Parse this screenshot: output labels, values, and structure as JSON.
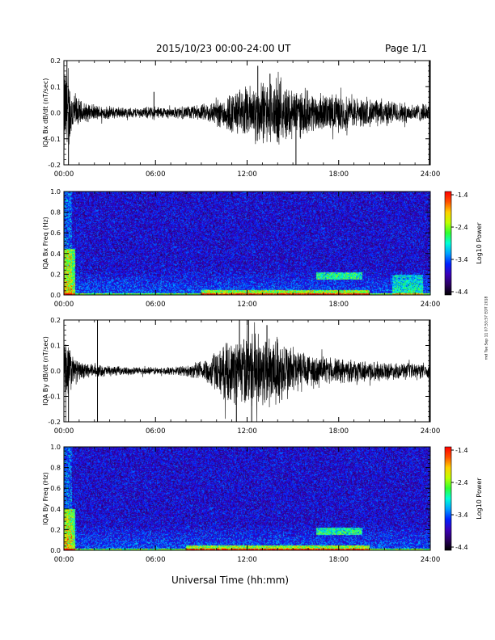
{
  "header": {
    "title": "2015/10/23  00:00-24:00 UT",
    "page": "Page 1/1"
  },
  "footer": {
    "xlabel": "Universal Time (hh:mm)",
    "side_stamp": "rnd Tue Sep 11 07:53:57 EDT 2018"
  },
  "x_ticks": [
    "00:00",
    "06:00",
    "12:00",
    "18:00",
    "24:00"
  ],
  "colorbar": {
    "label": "Log10 Power",
    "ticks": [
      "-1.4",
      "-2.4",
      "-3.4",
      "-4.4"
    ],
    "range": [
      -4.4,
      -1.4
    ]
  },
  "colors": {
    "colormap": [
      "#000000",
      "#2a0060",
      "#3a00b8",
      "#0020ff",
      "#00a0ff",
      "#00ffd8",
      "#30ff30",
      "#c0ff00",
      "#ffd000",
      "#ff5000",
      "#ff0000"
    ],
    "spectrogram_floor": "#1a2cd6"
  },
  "chart_data": [
    {
      "type": "line",
      "panel": "bx-timeseries",
      "ylabel": "IQA Bx dB/dt (nT/sec)",
      "xlim": [
        0,
        24
      ],
      "ylim": [
        -0.2,
        0.2
      ],
      "yticks": [
        "0.2",
        "0.1",
        "0.0",
        "-0.1",
        "-0.2"
      ],
      "x_hours": [
        0,
        0.5,
        1,
        1.5,
        2,
        3,
        4,
        5,
        6,
        7,
        8,
        9,
        10,
        11,
        12,
        13,
        14,
        15,
        16,
        17,
        18,
        19,
        20,
        21,
        22,
        23,
        24
      ],
      "envelope": [
        0.2,
        0.1,
        0.05,
        0.035,
        0.03,
        0.025,
        0.02,
        0.02,
        0.025,
        0.02,
        0.025,
        0.03,
        0.05,
        0.08,
        0.1,
        0.12,
        0.12,
        0.1,
        0.08,
        0.07,
        0.07,
        0.06,
        0.05,
        0.05,
        0.04,
        0.035,
        0.03
      ],
      "spikes": [
        [
          0.2,
          0.2
        ],
        [
          0.3,
          -0.2
        ],
        [
          5.9,
          0.08
        ],
        [
          12.7,
          0.18
        ],
        [
          15.2,
          -0.2
        ],
        [
          13.5,
          0.15
        ]
      ]
    },
    {
      "type": "heatmap",
      "panel": "bx-spectrogram",
      "ylabel": "IQA Bx Freq (Hz)",
      "xlim": [
        0,
        24
      ],
      "ylim": [
        0,
        1.0
      ],
      "yticks": [
        "1.0",
        "0.8",
        "0.6",
        "0.4",
        "0.2",
        "0.0"
      ],
      "zlabel": "Log10 Power",
      "zlim": [
        -4.4,
        -1.4
      ],
      "features": [
        {
          "desc": "broadband low-frequency enhancement",
          "x_hours": [
            0,
            0.7
          ],
          "freq_hz": [
            0,
            0.45
          ],
          "log10_power": -2.4
        },
        {
          "desc": "low-frequency band",
          "x_hours": [
            9,
            20
          ],
          "freq_hz": [
            0,
            0.05
          ],
          "log10_power": -2.4
        },
        {
          "desc": "band",
          "x_hours": [
            16.5,
            19.5
          ],
          "freq_hz": [
            0.15,
            0.22
          ],
          "log10_power": -2.7
        },
        {
          "desc": "band",
          "x_hours": [
            21.5,
            23.5
          ],
          "freq_hz": [
            0,
            0.2
          ],
          "log10_power": -3.0
        }
      ]
    },
    {
      "type": "line",
      "panel": "by-timeseries",
      "ylabel": "IQA By dB/dt (nT/sec)",
      "xlim": [
        0,
        24
      ],
      "ylim": [
        -0.2,
        0.2
      ],
      "yticks": [
        "0.2",
        "0.1",
        "0.0",
        "-0.1",
        "-0.2"
      ],
      "x_hours": [
        0,
        0.5,
        1,
        1.5,
        2,
        3,
        4,
        5,
        6,
        7,
        8,
        9,
        10,
        11,
        12,
        13,
        14,
        15,
        16,
        17,
        18,
        19,
        20,
        21,
        22,
        23,
        24
      ],
      "envelope": [
        0.18,
        0.07,
        0.035,
        0.03,
        0.025,
        0.02,
        0.015,
        0.015,
        0.015,
        0.015,
        0.02,
        0.04,
        0.08,
        0.12,
        0.14,
        0.15,
        0.14,
        0.1,
        0.07,
        0.05,
        0.05,
        0.04,
        0.04,
        0.035,
        0.03,
        0.03,
        0.03
      ],
      "spikes": [
        [
          0.3,
          -0.2
        ],
        [
          2.2,
          0.2
        ],
        [
          2.2,
          -0.2
        ],
        [
          11.5,
          0.2
        ],
        [
          11.3,
          -0.2
        ],
        [
          12.1,
          0.2
        ],
        [
          12.3,
          -0.2
        ],
        [
          13.3,
          0.18
        ]
      ]
    },
    {
      "type": "heatmap",
      "panel": "by-spectrogram",
      "ylabel": "IQA By Freq (Hz)",
      "xlim": [
        0,
        24
      ],
      "ylim": [
        0,
        1.0
      ],
      "yticks": [
        "1.0",
        "0.8",
        "0.6",
        "0.4",
        "0.2",
        "0.0"
      ],
      "zlabel": "Log10 Power",
      "zlim": [
        -4.4,
        -1.4
      ],
      "features": [
        {
          "desc": "broadband low-frequency enhancement",
          "x_hours": [
            0,
            0.7
          ],
          "freq_hz": [
            0,
            0.4
          ],
          "log10_power": -2.4
        },
        {
          "desc": "low-frequency band",
          "x_hours": [
            8,
            20
          ],
          "freq_hz": [
            0,
            0.05
          ],
          "log10_power": -2.4
        },
        {
          "desc": "band",
          "x_hours": [
            16.5,
            19.5
          ],
          "freq_hz": [
            0.15,
            0.22
          ],
          "log10_power": -2.7
        }
      ]
    }
  ]
}
